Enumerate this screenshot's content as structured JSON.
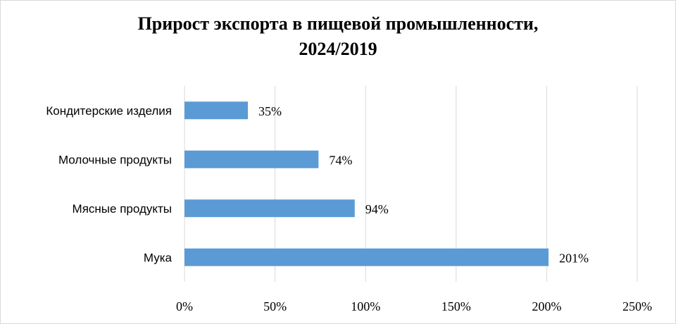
{
  "chart_data": {
    "type": "bar",
    "orientation": "horizontal",
    "title_lines": [
      "Прирост  экспорта  в пищевой промышленности,",
      "2024/2019"
    ],
    "categories": [
      "Кондитерские изделия",
      "Молочные продукты",
      "Мясные продукты",
      "Мука"
    ],
    "values": [
      35,
      74,
      94,
      201
    ],
    "data_labels": [
      "35%",
      "74%",
      "94%",
      "201%"
    ],
    "x_ticks": [
      0,
      50,
      100,
      150,
      200,
      250
    ],
    "x_tick_labels": [
      "0%",
      "50%",
      "100%",
      "150%",
      "200%",
      "250%"
    ],
    "xlim": [
      0,
      250
    ],
    "grid": true,
    "legend": "none",
    "bar_color": "#5b9bd5",
    "gridline_color": "#d9d9d9"
  }
}
